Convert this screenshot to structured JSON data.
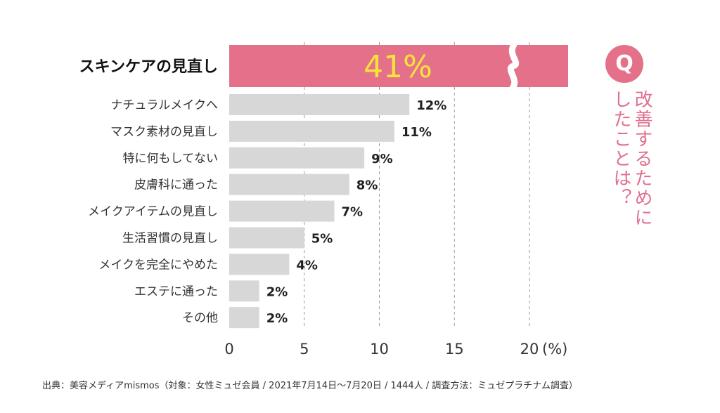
{
  "question": {
    "badge": "Q",
    "text": "改善するためにしたことは？"
  },
  "source": "出典：美容メディアmismos（対象：女性ミュゼ会員 / 2021年7月14日〜7月20日 / 1444人 / 調査方法：ミュゼプラチナム調査）",
  "colors": {
    "highlight_bar": "#e47189",
    "bar": "#d6d7d6",
    "highlight_value": "#f7e33a",
    "accent_text": "#e0708e"
  },
  "chart_data": {
    "type": "bar",
    "orientation": "horizontal",
    "categories": [
      "スキンケアの見直し",
      "ナチュラルメイクへ",
      "マスク素材の見直し",
      "特に何もしてない",
      "皮膚科に通った",
      "メイクアイテムの見直し",
      "生活習慣の見直し",
      "メイクを完全にやめた",
      "エステに通った",
      "その他"
    ],
    "values": [
      41,
      12,
      11,
      9,
      8,
      7,
      5,
      4,
      2,
      2
    ],
    "value_labels": [
      "41%",
      "12%",
      "11%",
      "9%",
      "8%",
      "7%",
      "5%",
      "4%",
      "2%",
      "2%"
    ],
    "xticks": [
      "0",
      "5",
      "10",
      "15",
      "20"
    ],
    "xunit": "(%)",
    "xlim": [
      0,
      22
    ],
    "axis_break": true,
    "grid": true
  }
}
